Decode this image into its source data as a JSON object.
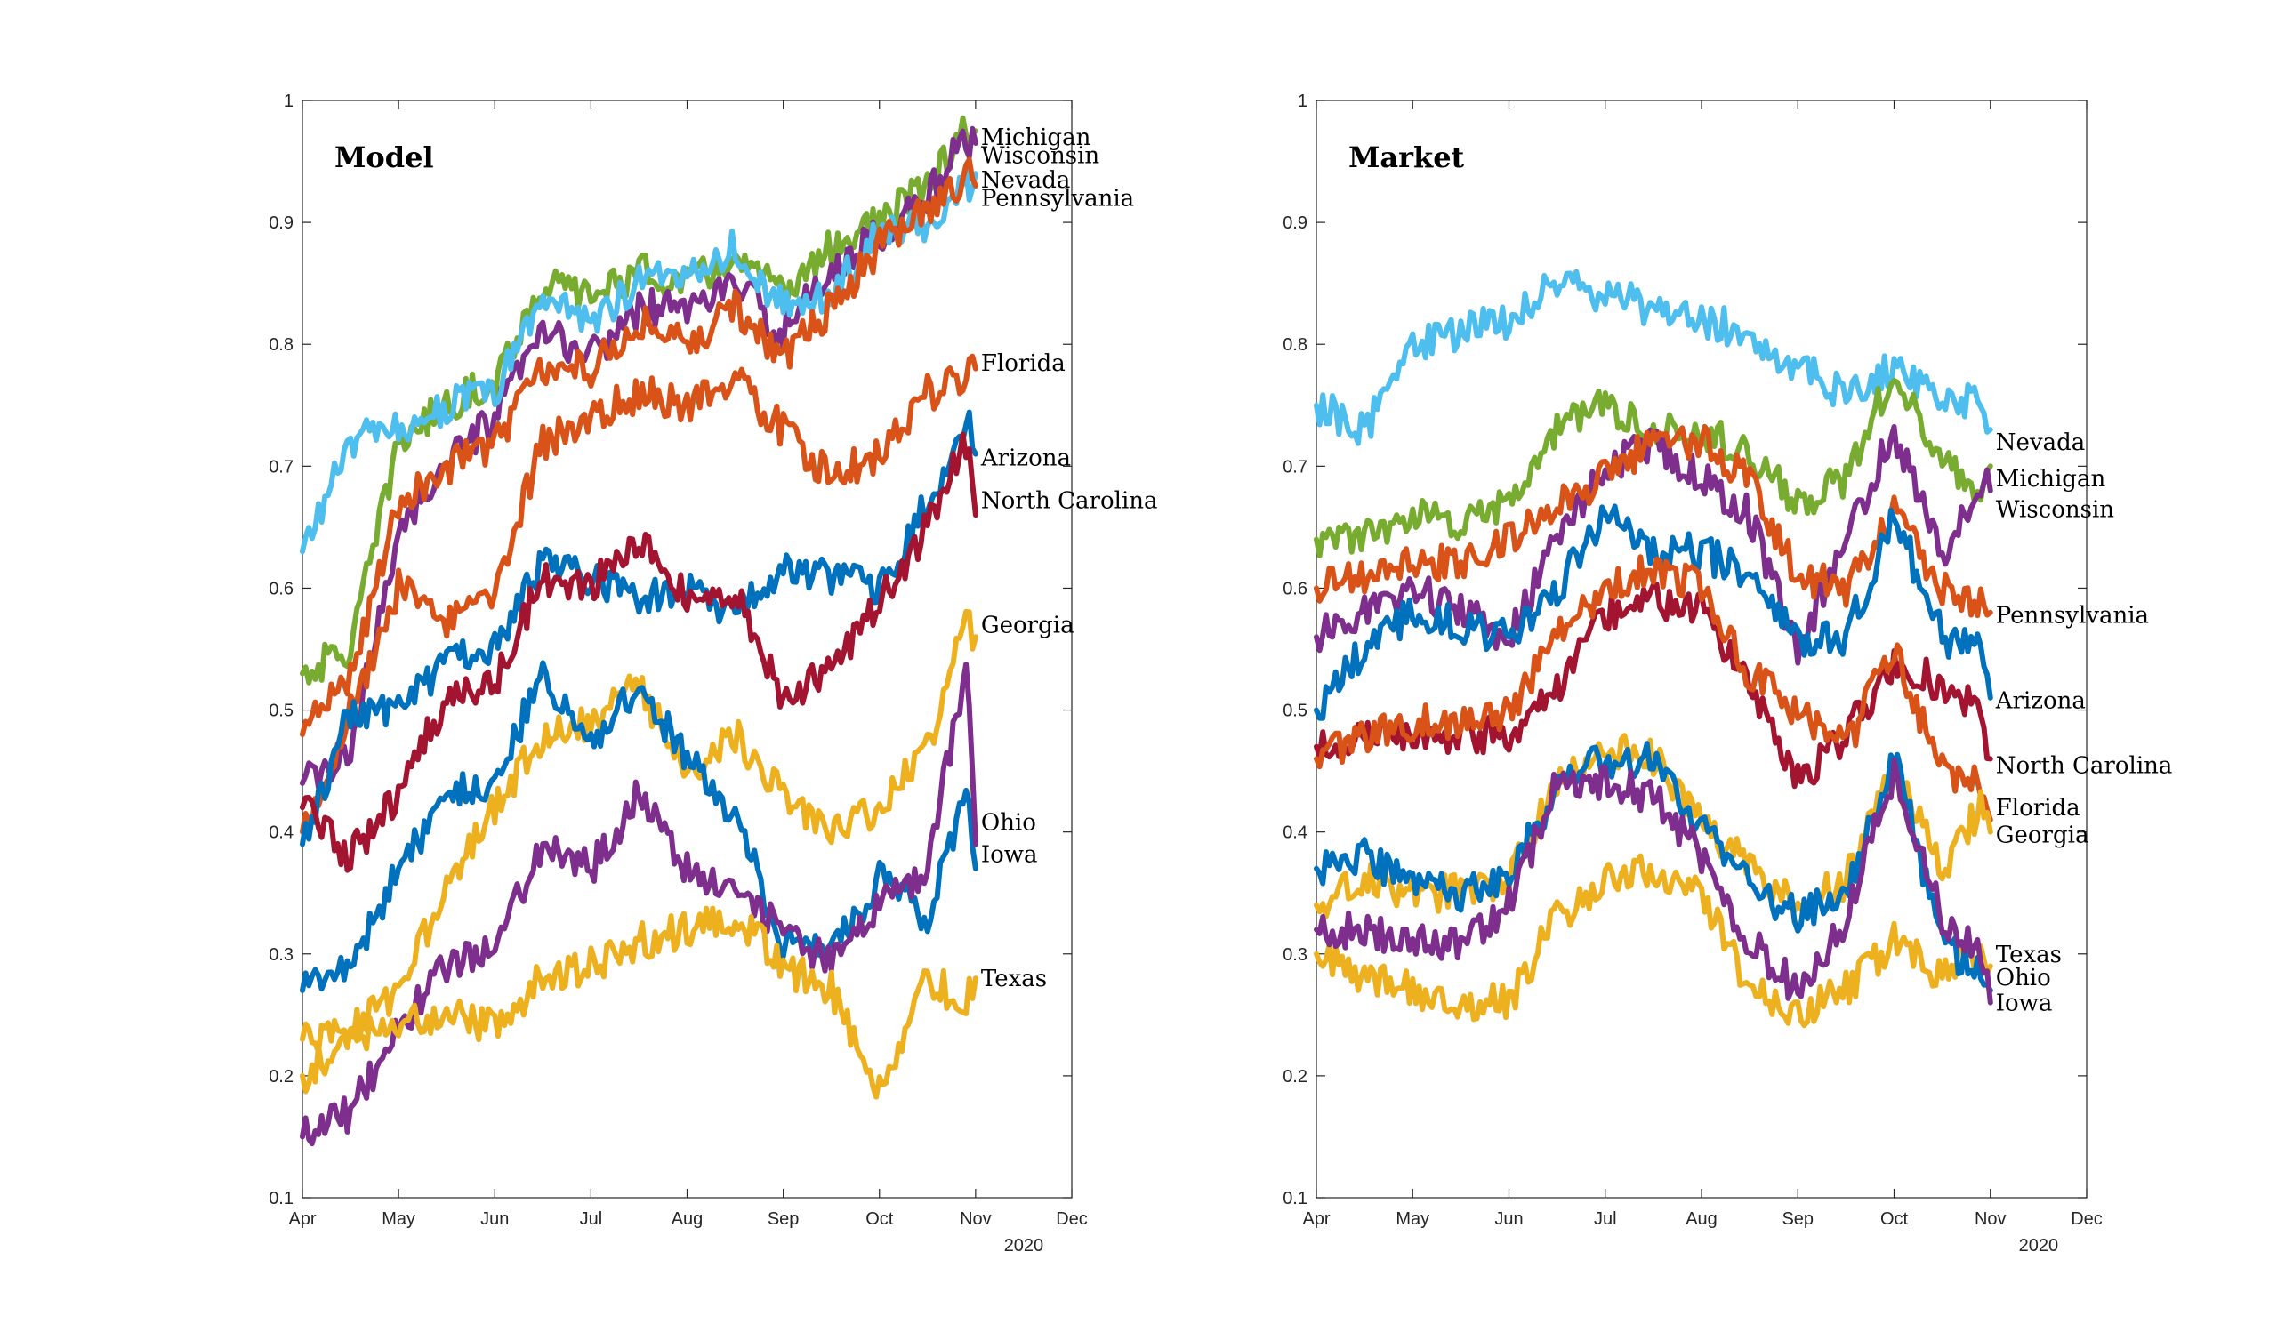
{
  "colors": {
    "blue": "#0072BD",
    "orange": "#D95319",
    "yellow": "#EDB120",
    "purple": "#7E2F8E",
    "green": "#77AC30",
    "cyan": "#4DBEEE",
    "red": "#A2142F"
  },
  "chart_data": [
    {
      "type": "line",
      "title": "Model",
      "xlabel": "",
      "ylabel": "",
      "year_label": "2020",
      "ylim": [
        0.1,
        1
      ],
      "xlim": [
        0,
        8
      ],
      "yticks": [
        0.1,
        0.2,
        0.3,
        0.4,
        0.5,
        0.6,
        0.7,
        0.8,
        0.9,
        1
      ],
      "ytick_labels": [
        "0.1",
        "0.2",
        "0.3",
        "0.4",
        "0.5",
        "0.6",
        "0.7",
        "0.8",
        "0.9",
        "1"
      ],
      "xticks": [
        0,
        1,
        2,
        3,
        4,
        5,
        6,
        7,
        8
      ],
      "xtick_labels": [
        "Apr",
        "May",
        "Jun",
        "Jul",
        "Aug",
        "Sep",
        "Oct",
        "Nov",
        "Dec"
      ],
      "grid": false,
      "series": [
        {
          "name": "Michigan",
          "color": "#77AC30",
          "label_value": 0.97,
          "x": [
            0,
            0.5,
            1,
            1.5,
            2,
            2.5,
            3,
            3.5,
            4,
            4.5,
            5,
            5.5,
            6,
            6.5,
            6.9,
            7.0
          ],
          "values": [
            0.53,
            0.55,
            0.72,
            0.75,
            0.77,
            0.85,
            0.84,
            0.86,
            0.85,
            0.87,
            0.84,
            0.88,
            0.9,
            0.93,
            0.975,
            0.975
          ]
        },
        {
          "name": "Wisconsin",
          "color": "#7E2F8E",
          "label_value": 0.955,
          "x": [
            0,
            0.5,
            1,
            1.5,
            2,
            2.5,
            3,
            3.5,
            4,
            4.5,
            5,
            5.5,
            6,
            6.5,
            6.9,
            7.0
          ],
          "values": [
            0.44,
            0.46,
            0.65,
            0.7,
            0.74,
            0.81,
            0.79,
            0.83,
            0.83,
            0.85,
            0.81,
            0.86,
            0.89,
            0.92,
            0.97,
            0.965
          ]
        },
        {
          "name": "Nevada",
          "color": "#4DBEEE",
          "label_value": 0.935,
          "x": [
            0,
            0.5,
            1,
            1.5,
            2,
            2.5,
            3,
            3.5,
            4,
            4.5,
            5,
            5.5,
            6,
            6.5,
            6.9,
            7.0
          ],
          "values": [
            0.63,
            0.72,
            0.73,
            0.75,
            0.76,
            0.84,
            0.82,
            0.85,
            0.86,
            0.88,
            0.83,
            0.84,
            0.89,
            0.9,
            0.93,
            0.94
          ]
        },
        {
          "name": "Pennsylvania",
          "color": "#D95319",
          "label_value": 0.92,
          "x": [
            0,
            0.5,
            1,
            1.5,
            2,
            2.5,
            3,
            3.5,
            4,
            4.5,
            5,
            5.5,
            6,
            6.5,
            6.9,
            7.0
          ],
          "values": [
            0.48,
            0.53,
            0.67,
            0.7,
            0.72,
            0.78,
            0.78,
            0.82,
            0.8,
            0.83,
            0.79,
            0.83,
            0.88,
            0.91,
            0.94,
            0.93
          ]
        },
        {
          "name": "Florida",
          "color": "#D95319",
          "label_value": 0.785,
          "x": [
            0,
            0.5,
            1,
            1.5,
            2,
            2.5,
            3,
            3.5,
            4,
            4.5,
            5,
            5.5,
            6,
            6.5,
            6.9,
            7.0
          ],
          "values": [
            0.4,
            0.5,
            0.6,
            0.57,
            0.6,
            0.72,
            0.74,
            0.76,
            0.75,
            0.77,
            0.73,
            0.69,
            0.71,
            0.76,
            0.77,
            0.78
          ]
        },
        {
          "name": "Arizona",
          "color": "#0072BD",
          "label_value": 0.707,
          "x": [
            0,
            0.5,
            1,
            1.5,
            2,
            2.5,
            3,
            3.5,
            4,
            4.5,
            5,
            5.5,
            6,
            6.5,
            6.9,
            7.0
          ],
          "values": [
            0.39,
            0.5,
            0.5,
            0.54,
            0.55,
            0.62,
            0.61,
            0.59,
            0.6,
            0.58,
            0.62,
            0.61,
            0.6,
            0.67,
            0.74,
            0.71
          ]
        },
        {
          "name": "North Carolina",
          "color": "#A2142F",
          "label_value": 0.672,
          "x": [
            0,
            0.5,
            1,
            1.5,
            2,
            2.5,
            3,
            3.5,
            4,
            4.5,
            5,
            5.5,
            6,
            6.5,
            6.9,
            7.0
          ],
          "values": [
            0.42,
            0.38,
            0.43,
            0.51,
            0.52,
            0.61,
            0.6,
            0.64,
            0.59,
            0.6,
            0.51,
            0.53,
            0.59,
            0.65,
            0.72,
            0.66
          ]
        },
        {
          "name": "Georgia",
          "color": "#EDB120",
          "label_value": 0.57,
          "x": [
            0,
            0.5,
            1,
            1.5,
            2,
            2.5,
            3,
            3.5,
            4,
            4.5,
            5,
            5.5,
            6,
            6.5,
            6.9,
            7.0
          ],
          "values": [
            0.23,
            0.24,
            0.27,
            0.35,
            0.42,
            0.48,
            0.49,
            0.52,
            0.45,
            0.48,
            0.43,
            0.4,
            0.42,
            0.47,
            0.57,
            0.56
          ]
        },
        {
          "name": "Ohio",
          "color": "#0072BD",
          "label_value": 0.408,
          "x": [
            0,
            0.5,
            1,
            1.5,
            2,
            2.5,
            3,
            3.5,
            4,
            4.5,
            5,
            5.5,
            6,
            6.5,
            6.9,
            7.0
          ],
          "values": [
            0.27,
            0.29,
            0.37,
            0.43,
            0.44,
            0.53,
            0.47,
            0.52,
            0.46,
            0.41,
            0.31,
            0.3,
            0.36,
            0.33,
            0.43,
            0.37
          ]
        },
        {
          "name": "Iowa",
          "color": "#7E2F8E",
          "label_value": 0.382,
          "x": [
            0,
            0.5,
            1,
            1.5,
            2,
            2.5,
            3,
            3.5,
            4,
            4.5,
            5,
            5.5,
            6,
            6.5,
            6.9,
            7.0
          ],
          "values": [
            0.15,
            0.17,
            0.24,
            0.29,
            0.31,
            0.39,
            0.37,
            0.43,
            0.37,
            0.35,
            0.32,
            0.29,
            0.34,
            0.37,
            0.54,
            0.39
          ]
        },
        {
          "name": "Texas",
          "color": "#EDB120",
          "label_value": 0.28,
          "x": [
            0,
            0.5,
            1,
            1.5,
            2,
            2.5,
            3,
            3.5,
            4,
            4.5,
            5,
            5.5,
            6,
            6.5,
            6.9,
            7.0
          ],
          "values": [
            0.2,
            0.23,
            0.24,
            0.25,
            0.24,
            0.28,
            0.29,
            0.31,
            0.32,
            0.33,
            0.29,
            0.27,
            0.19,
            0.28,
            0.26,
            0.28
          ]
        }
      ]
    },
    {
      "type": "line",
      "title": "Market",
      "xlabel": "",
      "ylabel": "",
      "year_label": "2020",
      "ylim": [
        0.1,
        1
      ],
      "xlim": [
        0,
        8
      ],
      "yticks": [
        0.1,
        0.2,
        0.3,
        0.4,
        0.5,
        0.6,
        0.7,
        0.8,
        0.9,
        1
      ],
      "ytick_labels": [
        "0.1",
        "0.2",
        "0.3",
        "0.4",
        "0.5",
        "0.6",
        "0.7",
        "0.8",
        "0.9",
        "1"
      ],
      "xticks": [
        0,
        1,
        2,
        3,
        4,
        5,
        6,
        7,
        8
      ],
      "xtick_labels": [
        "Apr",
        "May",
        "Jun",
        "Jul",
        "Aug",
        "Sep",
        "Oct",
        "Nov",
        "Dec"
      ],
      "grid": false,
      "series": [
        {
          "name": "Nevada",
          "color": "#4DBEEE",
          "label_value": 0.72,
          "x": [
            0,
            0.5,
            1,
            1.5,
            2,
            2.5,
            3,
            3.5,
            4,
            4.5,
            5,
            5.5,
            6,
            6.5,
            6.9,
            7.0
          ],
          "values": [
            0.75,
            0.73,
            0.8,
            0.81,
            0.82,
            0.85,
            0.84,
            0.83,
            0.82,
            0.81,
            0.78,
            0.76,
            0.78,
            0.76,
            0.75,
            0.73
          ]
        },
        {
          "name": "Michigan",
          "color": "#77AC30",
          "label_value": 0.69,
          "x": [
            0,
            0.5,
            1,
            1.5,
            2,
            2.5,
            3,
            3.5,
            4,
            4.5,
            5,
            5.5,
            6,
            6.5,
            6.9,
            7.0
          ],
          "values": [
            0.64,
            0.64,
            0.66,
            0.65,
            0.67,
            0.73,
            0.75,
            0.73,
            0.73,
            0.71,
            0.67,
            0.69,
            0.78,
            0.7,
            0.68,
            0.7
          ]
        },
        {
          "name": "Wisconsin",
          "color": "#7E2F8E",
          "label_value": 0.665,
          "x": [
            0,
            0.5,
            1,
            1.5,
            2,
            2.5,
            3,
            3.5,
            4,
            4.5,
            5,
            5.5,
            6,
            6.5,
            6.9,
            7.0
          ],
          "values": [
            0.56,
            0.58,
            0.6,
            0.58,
            0.56,
            0.64,
            0.7,
            0.72,
            0.69,
            0.66,
            0.55,
            0.64,
            0.73,
            0.62,
            0.69,
            0.68
          ]
        },
        {
          "name": "Pennsylvania",
          "color": "#D95319",
          "label_value": 0.578,
          "x": [
            0,
            0.5,
            1,
            1.5,
            2,
            2.5,
            3,
            3.5,
            4,
            4.5,
            5,
            5.5,
            6,
            6.5,
            6.9,
            7.0
          ],
          "values": [
            0.6,
            0.61,
            0.62,
            0.62,
            0.64,
            0.67,
            0.69,
            0.72,
            0.72,
            0.69,
            0.61,
            0.6,
            0.66,
            0.6,
            0.59,
            0.58
          ]
        },
        {
          "name": "Arizona",
          "color": "#0072BD",
          "label_value": 0.508,
          "x": [
            0,
            0.5,
            1,
            1.5,
            2,
            2.5,
            3,
            3.5,
            4,
            4.5,
            5,
            5.5,
            6,
            6.5,
            6.9,
            7.0
          ],
          "values": [
            0.5,
            0.55,
            0.58,
            0.57,
            0.56,
            0.6,
            0.66,
            0.63,
            0.63,
            0.61,
            0.56,
            0.56,
            0.66,
            0.56,
            0.55,
            0.51
          ]
        },
        {
          "name": "North Carolina",
          "color": "#A2142F",
          "label_value": 0.455,
          "x": [
            0,
            0.5,
            1,
            1.5,
            2,
            2.5,
            3,
            3.5,
            4,
            4.5,
            5,
            5.5,
            6,
            6.5,
            6.9,
            7.0
          ],
          "values": [
            0.47,
            0.48,
            0.48,
            0.48,
            0.48,
            0.52,
            0.58,
            0.59,
            0.58,
            0.52,
            0.44,
            0.48,
            0.54,
            0.52,
            0.5,
            0.46
          ]
        },
        {
          "name": "Florida",
          "color": "#D95319",
          "label_value": 0.42,
          "x": [
            0,
            0.5,
            1,
            1.5,
            2,
            2.5,
            3,
            3.5,
            4,
            4.5,
            5,
            5.5,
            6,
            6.5,
            6.9,
            7.0
          ],
          "values": [
            0.46,
            0.48,
            0.49,
            0.49,
            0.5,
            0.56,
            0.6,
            0.62,
            0.6,
            0.53,
            0.5,
            0.47,
            0.55,
            0.45,
            0.44,
            0.41
          ]
        },
        {
          "name": "Georgia",
          "color": "#EDB120",
          "label_value": 0.398,
          "x": [
            0,
            0.5,
            1,
            1.5,
            2,
            2.5,
            3,
            3.5,
            4,
            4.5,
            5,
            5.5,
            6,
            6.5,
            6.9,
            7.0
          ],
          "values": [
            0.34,
            0.36,
            0.35,
            0.35,
            0.36,
            0.44,
            0.47,
            0.46,
            0.41,
            0.37,
            0.34,
            0.36,
            0.45,
            0.37,
            0.42,
            0.4
          ]
        },
        {
          "name": "Texas",
          "color": "#EDB120",
          "label_value": 0.3,
          "x": [
            0,
            0.5,
            1,
            1.5,
            2,
            2.5,
            3,
            3.5,
            4,
            4.5,
            5,
            5.5,
            6,
            6.5,
            6.9,
            7.0
          ],
          "values": [
            0.3,
            0.28,
            0.27,
            0.26,
            0.26,
            0.33,
            0.36,
            0.37,
            0.35,
            0.27,
            0.25,
            0.27,
            0.31,
            0.28,
            0.3,
            0.29
          ]
        },
        {
          "name": "Ohio",
          "color": "#0072BD",
          "label_value": 0.281,
          "x": [
            0,
            0.5,
            1,
            1.5,
            2,
            2.5,
            3,
            3.5,
            4,
            4.5,
            5,
            5.5,
            6,
            6.5,
            6.9,
            7.0
          ],
          "values": [
            0.37,
            0.38,
            0.36,
            0.35,
            0.36,
            0.44,
            0.46,
            0.46,
            0.4,
            0.36,
            0.33,
            0.35,
            0.46,
            0.31,
            0.28,
            0.27
          ]
        },
        {
          "name": "Iowa",
          "color": "#7E2F8E",
          "label_value": 0.26,
          "x": [
            0,
            0.5,
            1,
            1.5,
            2,
            2.5,
            3,
            3.5,
            4,
            4.5,
            5,
            5.5,
            6,
            6.5,
            6.9,
            7.0
          ],
          "values": [
            0.32,
            0.32,
            0.31,
            0.31,
            0.34,
            0.44,
            0.44,
            0.43,
            0.38,
            0.31,
            0.27,
            0.33,
            0.45,
            0.33,
            0.3,
            0.26
          ]
        }
      ]
    }
  ]
}
